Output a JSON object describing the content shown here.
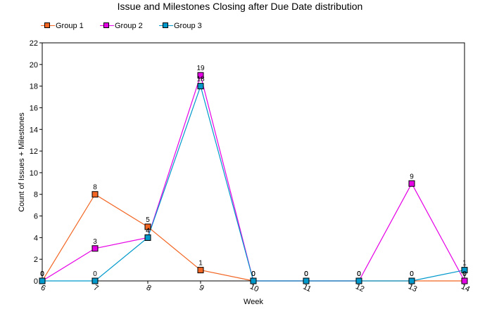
{
  "chart_data": {
    "type": "line",
    "title": "Issue and Milestones Closing after Due Date distribution",
    "xlabel": "Week",
    "ylabel": "Count of Issues + Milestones",
    "categories": [
      "6",
      "7",
      "8",
      "9",
      "10",
      "11",
      "12",
      "13",
      "14"
    ],
    "ylim": [
      0,
      22
    ],
    "yticks": [
      "0",
      "2",
      "4",
      "6",
      "8",
      "10",
      "12",
      "14",
      "16",
      "18",
      "20",
      "22"
    ],
    "grid": false,
    "legend_position": "top-left",
    "series": [
      {
        "name": "Group 1",
        "color": "#f26522",
        "values": [
          0,
          8,
          5,
          1,
          0,
          0,
          0,
          0,
          0
        ],
        "labels": [
          "0",
          "8",
          "5",
          "1",
          "0",
          "0",
          "0",
          "0",
          "0"
        ]
      },
      {
        "name": "Group 2",
        "color": "#e600e6",
        "values": [
          0,
          3,
          4,
          19,
          0,
          0,
          0,
          9,
          0
        ],
        "labels": [
          "0",
          "3",
          "4",
          "19",
          "0",
          "0",
          "0",
          "9",
          "0"
        ]
      },
      {
        "name": "Group 3",
        "color": "#0099cc",
        "values": [
          0,
          0,
          4,
          18,
          0,
          0,
          0,
          0,
          1
        ],
        "labels": [
          "0",
          "0",
          "4",
          "18",
          "0",
          "0",
          "0",
          "0",
          "1"
        ]
      }
    ]
  }
}
